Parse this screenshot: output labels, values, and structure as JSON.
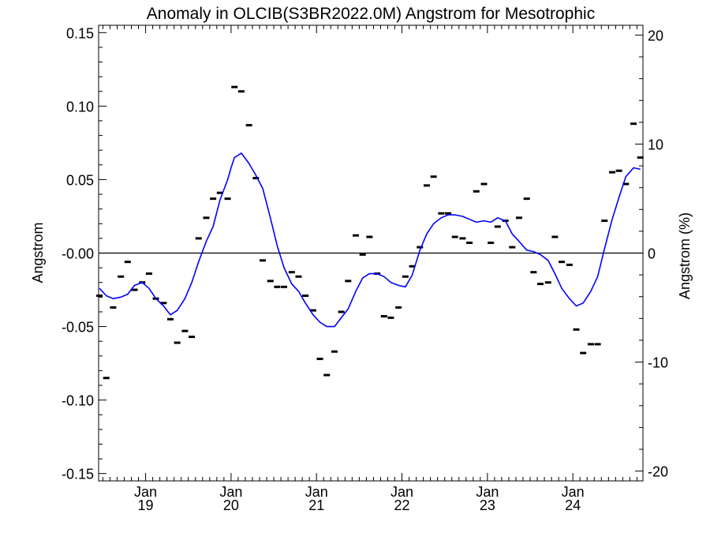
{
  "chart_data": {
    "type": "line",
    "title": "Anomaly in OLCIB(S3BR2022.0M) Angstrom for Mesotrophic",
    "ylabel": "Angstrom",
    "y2label": "Angstrom (%)",
    "ylim": [
      -0.155,
      0.155
    ],
    "y2lim": [
      -20.9,
      20.9
    ],
    "xlim": [
      2018.45,
      2024.82
    ],
    "yticks": [
      {
        "value": 0.15,
        "label": "0.15"
      },
      {
        "value": 0.1,
        "label": "0.10"
      },
      {
        "value": 0.05,
        "label": "0.05"
      },
      {
        "value": 0.0,
        "label": "-0.00"
      },
      {
        "value": -0.05,
        "label": "-0.05"
      },
      {
        "value": -0.1,
        "label": "-0.10"
      },
      {
        "value": -0.15,
        "label": "-0.15"
      }
    ],
    "y2ticks": [
      {
        "value": 20,
        "label": "20"
      },
      {
        "value": 10,
        "label": "10"
      },
      {
        "value": 0,
        "label": "0"
      },
      {
        "value": -10,
        "label": "-10"
      },
      {
        "value": -20,
        "label": "-20"
      }
    ],
    "xticks": [
      {
        "value": 2019.0,
        "label1": "Jan",
        "label2": "19"
      },
      {
        "value": 2020.0,
        "label1": "Jan",
        "label2": "20"
      },
      {
        "value": 2021.0,
        "label1": "Jan",
        "label2": "21"
      },
      {
        "value": 2022.0,
        "label1": "Jan",
        "label2": "22"
      },
      {
        "value": 2023.0,
        "label1": "Jan",
        "label2": "23"
      },
      {
        "value": 2024.0,
        "label1": "Jan",
        "label2": "24"
      }
    ],
    "zero_line": true,
    "grid": false,
    "series": [
      {
        "kind": "monthly",
        "color": "#000000",
        "points": [
          [
            2018.46,
            -0.029
          ],
          [
            2018.54,
            -0.085
          ],
          [
            2018.62,
            -0.037
          ],
          [
            2018.71,
            -0.016
          ],
          [
            2018.79,
            -0.006
          ],
          [
            2018.87,
            -0.025
          ],
          [
            2018.96,
            -0.02
          ],
          [
            2019.04,
            -0.014
          ],
          [
            2019.12,
            -0.031
          ],
          [
            2019.21,
            -0.034
          ],
          [
            2019.29,
            -0.045
          ],
          [
            2019.37,
            -0.061
          ],
          [
            2019.46,
            -0.053
          ],
          [
            2019.54,
            -0.057
          ],
          [
            2019.62,
            0.01
          ],
          [
            2019.71,
            0.024
          ],
          [
            2019.79,
            0.037
          ],
          [
            2019.87,
            0.041
          ],
          [
            2019.96,
            0.037
          ],
          [
            2020.04,
            0.113
          ],
          [
            2020.12,
            0.11
          ],
          [
            2020.21,
            0.087
          ],
          [
            2020.29,
            0.051
          ],
          [
            2020.37,
            -0.005
          ],
          [
            2020.46,
            -0.019
          ],
          [
            2020.54,
            -0.023
          ],
          [
            2020.62,
            -0.023
          ],
          [
            2020.71,
            -0.013
          ],
          [
            2020.79,
            -0.016
          ],
          [
            2020.87,
            -0.029
          ],
          [
            2020.96,
            -0.039
          ],
          [
            2021.04,
            -0.072
          ],
          [
            2021.12,
            -0.083
          ],
          [
            2021.21,
            -0.067
          ],
          [
            2021.29,
            -0.04
          ],
          [
            2021.37,
            -0.019
          ],
          [
            2021.46,
            0.012
          ],
          [
            2021.54,
            -0.001
          ],
          [
            2021.62,
            0.011
          ],
          [
            2021.71,
            -0.014
          ],
          [
            2021.79,
            -0.043
          ],
          [
            2021.87,
            -0.044
          ],
          [
            2021.96,
            -0.037
          ],
          [
            2022.04,
            -0.016
          ],
          [
            2022.12,
            -0.009
          ],
          [
            2022.21,
            0.004
          ],
          [
            2022.29,
            0.046
          ],
          [
            2022.37,
            0.052
          ],
          [
            2022.46,
            0.027
          ],
          [
            2022.54,
            0.027
          ],
          [
            2022.62,
            0.011
          ],
          [
            2022.71,
            0.01
          ],
          [
            2022.79,
            0.007
          ],
          [
            2022.87,
            0.042
          ],
          [
            2022.96,
            0.047
          ],
          [
            2023.04,
            0.007
          ],
          [
            2023.12,
            0.018
          ],
          [
            2023.21,
            0.022
          ],
          [
            2023.29,
            0.004
          ],
          [
            2023.37,
            0.024
          ],
          [
            2023.46,
            0.037
          ],
          [
            2023.54,
            -0.013
          ],
          [
            2023.62,
            -0.021
          ],
          [
            2023.71,
            -0.02
          ],
          [
            2023.79,
            0.011
          ],
          [
            2023.87,
            -0.006
          ],
          [
            2023.96,
            -0.008
          ],
          [
            2024.04,
            -0.052
          ],
          [
            2024.12,
            -0.068
          ],
          [
            2024.21,
            -0.062
          ],
          [
            2024.29,
            -0.062
          ],
          [
            2024.37,
            0.022
          ],
          [
            2024.46,
            0.055
          ],
          [
            2024.54,
            0.056
          ],
          [
            2024.62,
            0.047
          ],
          [
            2024.71,
            0.088
          ],
          [
            2024.79,
            0.065
          ]
        ]
      },
      {
        "kind": "smoothed",
        "color": "#0000ff",
        "points": [
          [
            2018.46,
            -0.024
          ],
          [
            2018.54,
            -0.029
          ],
          [
            2018.62,
            -0.031
          ],
          [
            2018.71,
            -0.03
          ],
          [
            2018.79,
            -0.028
          ],
          [
            2018.87,
            -0.022
          ],
          [
            2018.96,
            -0.02
          ],
          [
            2019.04,
            -0.024
          ],
          [
            2019.12,
            -0.031
          ],
          [
            2019.21,
            -0.036
          ],
          [
            2019.29,
            -0.042
          ],
          [
            2019.37,
            -0.039
          ],
          [
            2019.46,
            -0.031
          ],
          [
            2019.54,
            -0.02
          ],
          [
            2019.62,
            -0.006
          ],
          [
            2019.71,
            0.008
          ],
          [
            2019.79,
            0.018
          ],
          [
            2019.87,
            0.036
          ],
          [
            2019.96,
            0.05
          ],
          [
            2020.0,
            0.058
          ],
          [
            2020.04,
            0.065
          ],
          [
            2020.12,
            0.068
          ],
          [
            2020.21,
            0.061
          ],
          [
            2020.29,
            0.053
          ],
          [
            2020.37,
            0.044
          ],
          [
            2020.46,
            0.024
          ],
          [
            2020.54,
            0.005
          ],
          [
            2020.62,
            -0.01
          ],
          [
            2020.71,
            -0.021
          ],
          [
            2020.79,
            -0.026
          ],
          [
            2020.87,
            -0.034
          ],
          [
            2020.96,
            -0.042
          ],
          [
            2021.04,
            -0.047
          ],
          [
            2021.12,
            -0.05
          ],
          [
            2021.21,
            -0.05
          ],
          [
            2021.29,
            -0.044
          ],
          [
            2021.37,
            -0.038
          ],
          [
            2021.46,
            -0.026
          ],
          [
            2021.54,
            -0.017
          ],
          [
            2021.62,
            -0.014
          ],
          [
            2021.71,
            -0.014
          ],
          [
            2021.79,
            -0.016
          ],
          [
            2021.87,
            -0.02
          ],
          [
            2021.96,
            -0.022
          ],
          [
            2022.04,
            -0.023
          ],
          [
            2022.12,
            -0.015
          ],
          [
            2022.21,
            0.002
          ],
          [
            2022.29,
            0.013
          ],
          [
            2022.37,
            0.02
          ],
          [
            2022.46,
            0.024
          ],
          [
            2022.54,
            0.026
          ],
          [
            2022.62,
            0.026
          ],
          [
            2022.71,
            0.025
          ],
          [
            2022.79,
            0.023
          ],
          [
            2022.87,
            0.021
          ],
          [
            2022.96,
            0.022
          ],
          [
            2023.04,
            0.021
          ],
          [
            2023.12,
            0.024
          ],
          [
            2023.21,
            0.022
          ],
          [
            2023.29,
            0.013
          ],
          [
            2023.37,
            0.008
          ],
          [
            2023.46,
            0.002
          ],
          [
            2023.54,
            0.001
          ],
          [
            2023.62,
            -0.001
          ],
          [
            2023.71,
            -0.005
          ],
          [
            2023.79,
            -0.014
          ],
          [
            2023.87,
            -0.024
          ],
          [
            2023.96,
            -0.031
          ],
          [
            2024.04,
            -0.036
          ],
          [
            2024.12,
            -0.034
          ],
          [
            2024.21,
            -0.026
          ],
          [
            2024.29,
            -0.016
          ],
          [
            2024.37,
            0.003
          ],
          [
            2024.46,
            0.023
          ],
          [
            2024.54,
            0.038
          ],
          [
            2024.62,
            0.052
          ],
          [
            2024.71,
            0.058
          ],
          [
            2024.79,
            0.057
          ]
        ]
      }
    ]
  }
}
